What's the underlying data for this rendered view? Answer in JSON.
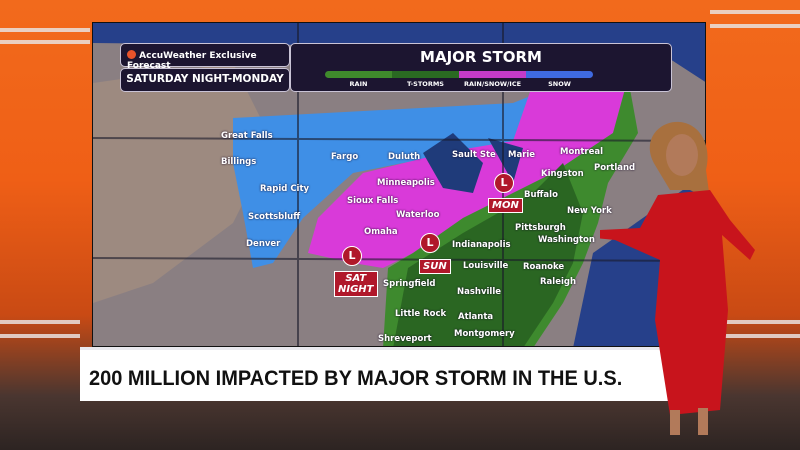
{
  "header": {
    "brand": "AccuWeather Exclusive Forecast",
    "title": "MAJOR STORM",
    "period": "SATURDAY NIGHT-MONDAY",
    "legend": [
      {
        "label": "RAIN",
        "color": "#3f8a2c"
      },
      {
        "label": "T-STORMS",
        "color": "#2a6a22"
      },
      {
        "label": "RAIN/SNOW/ICE",
        "color": "#c43bc8"
      },
      {
        "label": "SNOW",
        "color": "#3f6ae0"
      }
    ]
  },
  "map": {
    "cities": [
      "Great Falls",
      "Billings",
      "Fargo",
      "Duluth",
      "Sault Ste",
      "Marie",
      "Montreal",
      "Kingston",
      "Portland",
      "Rapid City",
      "Minneapolis",
      "Sioux Falls",
      "Buffalo",
      "Waterloo",
      "Scottsbluff",
      "New York",
      "Omaha",
      "Pittsburgh",
      "Washington",
      "Denver",
      "Indianapolis",
      "Louisville",
      "Roanoke",
      "Springfield",
      "Nashville",
      "Raleigh",
      "Little Rock",
      "Atlanta",
      "Montgomery",
      "Shreveport"
    ],
    "lows": [
      {
        "symbol": "L",
        "label_line1": "SAT",
        "label_line2": "NIGHT"
      },
      {
        "symbol": "L",
        "label_line1": "SUN"
      },
      {
        "symbol": "L",
        "label_line1": "MON"
      }
    ]
  },
  "lower_third": {
    "headline": "200 MILLION IMPACTED BY MAJOR STORM IN THE U.S.",
    "logo_color": "#f0661e"
  }
}
